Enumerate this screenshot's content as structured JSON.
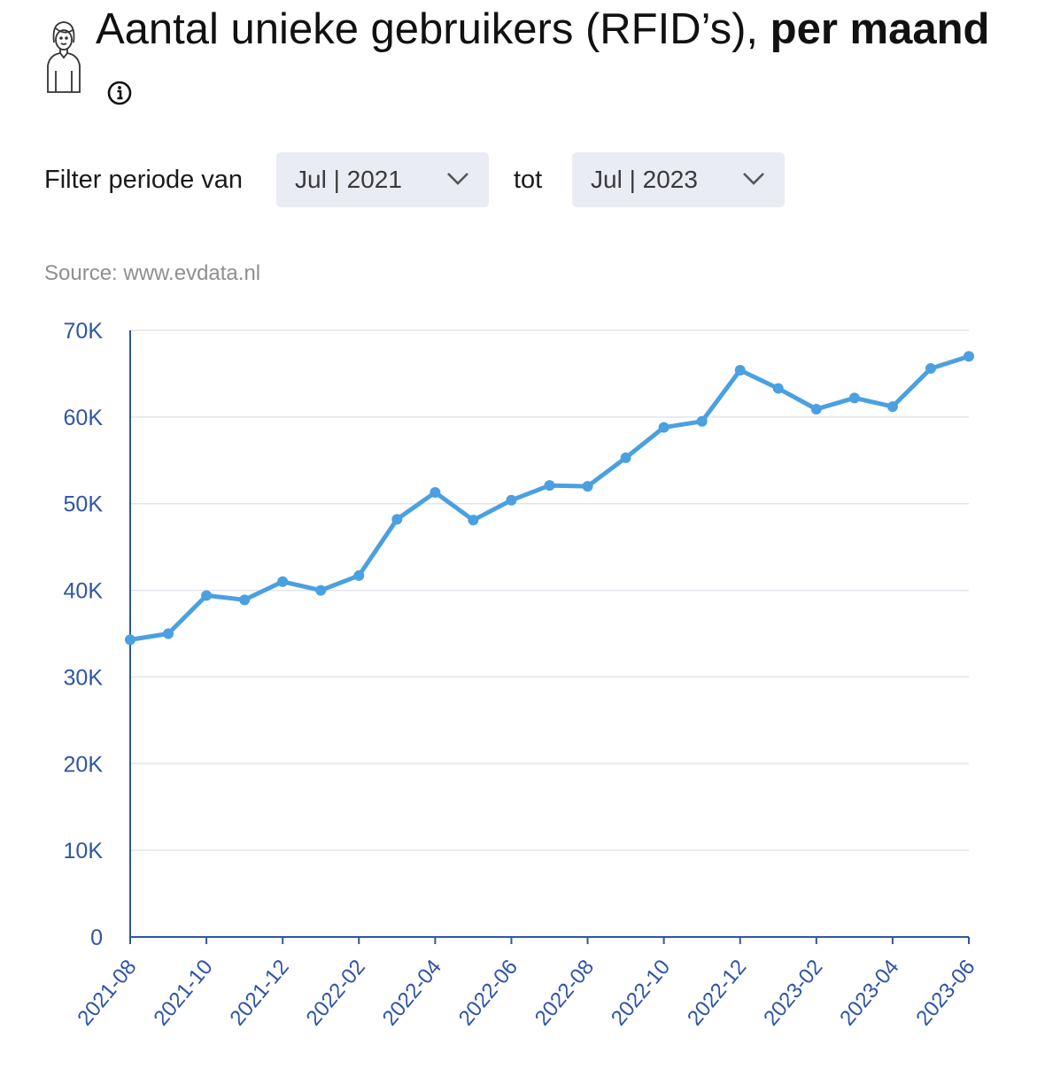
{
  "header": {
    "title_regular": "Aantal unieke gebruikers (RFID’s),",
    "title_bold": "per maand"
  },
  "filter": {
    "label": "Filter periode van",
    "from_value": "Jul | 2021",
    "to_label": "tot",
    "to_value": "Jul | 2023"
  },
  "source": "Source: www.evdata.nl",
  "colors": {
    "line": "#4aa0e0",
    "axis": "#2f55a8",
    "grid": "#e2e4ec"
  },
  "chart_data": {
    "type": "line",
    "title": "",
    "xlabel": "",
    "ylabel": "",
    "x": [
      "2021-08",
      "2021-09",
      "2021-10",
      "2021-11",
      "2021-12",
      "2022-01",
      "2022-02",
      "2022-03",
      "2022-04",
      "2022-05",
      "2022-06",
      "2022-07",
      "2022-08",
      "2022-09",
      "2022-10",
      "2022-11",
      "2022-12",
      "2023-01",
      "2023-02",
      "2023-03",
      "2023-04",
      "2023-05",
      "2023-06"
    ],
    "x_tick_labels": [
      "2021-08",
      "2021-10",
      "2021-12",
      "2022-02",
      "2022-04",
      "2022-06",
      "2022-08",
      "2022-10",
      "2022-12",
      "2023-02",
      "2023-04",
      "2023-06"
    ],
    "y_ticks": [
      0,
      10000,
      20000,
      30000,
      40000,
      50000,
      60000,
      70000
    ],
    "y_tick_labels": [
      "0",
      "10K",
      "20K",
      "30K",
      "40K",
      "50K",
      "60K",
      "70K"
    ],
    "ylim": [
      0,
      70000
    ],
    "grid": true,
    "series": [
      {
        "values": [
          34300,
          35000,
          39400,
          38900,
          41000,
          40000,
          41700,
          48200,
          51300,
          48100,
          50400,
          52100,
          52000,
          55300,
          58800,
          59500,
          65400,
          63300,
          60900,
          62200,
          61200,
          65600,
          67000
        ]
      }
    ]
  }
}
